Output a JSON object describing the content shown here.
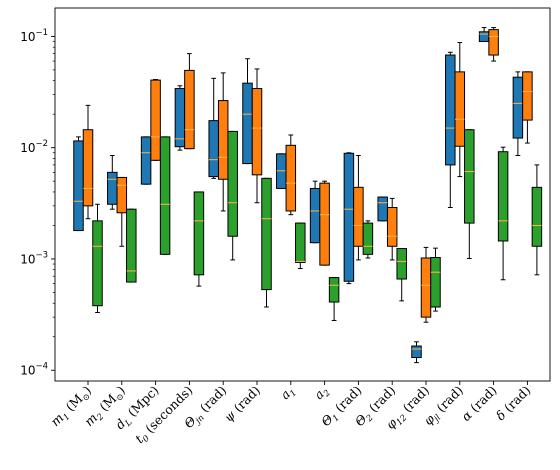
{
  "chart_data": {
    "type": "boxplot",
    "yscale": "log",
    "ylim": [
      8e-05,
      0.18
    ],
    "y_ticks": [
      {
        "value": 0.1,
        "base": "10",
        "exp": "−1"
      },
      {
        "value": 0.01,
        "base": "10",
        "exp": "−2"
      },
      {
        "value": 0.001,
        "base": "10",
        "exp": "−3"
      },
      {
        "value": 0.0001,
        "base": "10",
        "exp": "−4"
      }
    ],
    "categories": [
      {
        "main": "m",
        "sub": "1",
        "rest": " (M",
        "rest_sub": "⊙",
        "end": ")"
      },
      {
        "main": "m",
        "sub": "2",
        "rest": " (M",
        "rest_sub": "⊙",
        "end": ")"
      },
      {
        "main": "d",
        "sub": "L",
        "rest": " (Mpc)",
        "rest_sub": "",
        "end": ""
      },
      {
        "main": "t",
        "sub": "0",
        "rest": " (seconds)",
        "rest_sub": "",
        "end": ""
      },
      {
        "main": "Θ",
        "sub": "jn",
        "rest": " (rad)",
        "rest_sub": "",
        "end": ""
      },
      {
        "main": "ψ",
        "sub": "",
        "rest": " (rad)",
        "rest_sub": "",
        "end": ""
      },
      {
        "main": "a",
        "sub": "1",
        "rest": "",
        "rest_sub": "",
        "end": ""
      },
      {
        "main": "a",
        "sub": "2",
        "rest": "",
        "rest_sub": "",
        "end": ""
      },
      {
        "main": "Θ",
        "sub": "1",
        "rest": " (rad)",
        "rest_sub": "",
        "end": ""
      },
      {
        "main": "Θ",
        "sub": "2",
        "rest": " (rad)",
        "rest_sub": "",
        "end": ""
      },
      {
        "main": "φ",
        "sub": "12",
        "rest": " (rad)",
        "rest_sub": "",
        "end": ""
      },
      {
        "main": "φ",
        "sub": "jl",
        "rest": " (rad)",
        "rest_sub": "",
        "end": ""
      },
      {
        "main": "α",
        "sub": "",
        "rest": " (rad)",
        "rest_sub": "",
        "end": ""
      },
      {
        "main": "δ",
        "sub": "",
        "rest": " (rad)",
        "rest_sub": "",
        "end": ""
      }
    ],
    "series": [
      {
        "color": "#1f77b4",
        "boxes": [
          {
            "wl": 0.0018,
            "q1": 0.0018,
            "med": 0.0033,
            "q3": 0.0115,
            "wh": 0.0125
          },
          {
            "wl": 0.0028,
            "q1": 0.0031,
            "med": 0.0052,
            "q3": 0.006,
            "wh": 0.0085
          },
          {
            "wl": 0.0047,
            "q1": 0.0047,
            "med": 0.009,
            "q3": 0.0125,
            "wh": 0.0125
          },
          {
            "wl": 0.0095,
            "q1": 0.0102,
            "med": 0.012,
            "q3": 0.034,
            "wh": 0.036
          },
          {
            "wl": 0.0053,
            "q1": 0.0055,
            "med": 0.0078,
            "q3": 0.0175,
            "wh": 0.042
          },
          {
            "wl": 0.0072,
            "q1": 0.0072,
            "med": 0.02,
            "q3": 0.038,
            "wh": 0.063
          },
          {
            "wl": 0.0043,
            "q1": 0.0043,
            "med": 0.0062,
            "q3": 0.0088,
            "wh": 0.0088
          },
          {
            "wl": 0.0014,
            "q1": 0.0014,
            "med": 0.0027,
            "q3": 0.0043,
            "wh": 0.005
          },
          {
            "wl": 0.0006,
            "q1": 0.00063,
            "med": 0.0028,
            "q3": 0.0089,
            "wh": 0.009
          },
          {
            "wl": 0.0022,
            "q1": 0.0022,
            "med": 0.0032,
            "q3": 0.0036,
            "wh": 0.0036
          },
          {
            "wl": 0.000117,
            "q1": 0.00013,
            "med": 0.000155,
            "q3": 0.000165,
            "wh": 0.00018
          },
          {
            "wl": 0.0029,
            "q1": 0.007,
            "med": 0.015,
            "q3": 0.068,
            "wh": 0.072
          },
          {
            "wl": 0.09,
            "q1": 0.09,
            "med": 0.105,
            "q3": 0.11,
            "wh": 0.12
          },
          {
            "wl": 0.0085,
            "q1": 0.0122,
            "med": 0.025,
            "q3": 0.043,
            "wh": 0.048
          }
        ]
      },
      {
        "color": "#ff7f0e",
        "boxes": [
          {
            "wl": 0.0023,
            "q1": 0.003,
            "med": 0.0043,
            "q3": 0.0145,
            "wh": 0.024
          },
          {
            "wl": 0.0013,
            "q1": 0.0026,
            "med": 0.0046,
            "q3": 0.0054,
            "wh": 0.0054
          },
          {
            "wl": 0.0077,
            "q1": 0.0077,
            "med": 0.0125,
            "q3": 0.0405,
            "wh": 0.041
          },
          {
            "wl": 0.0098,
            "q1": 0.0098,
            "med": 0.0145,
            "q3": 0.0495,
            "wh": 0.07
          },
          {
            "wl": 0.0027,
            "q1": 0.0052,
            "med": 0.0082,
            "q3": 0.0265,
            "wh": 0.047
          },
          {
            "wl": 0.0032,
            "q1": 0.0057,
            "med": 0.015,
            "q3": 0.034,
            "wh": 0.051
          },
          {
            "wl": 0.0025,
            "q1": 0.0027,
            "med": 0.0048,
            "q3": 0.0105,
            "wh": 0.013
          },
          {
            "wl": 0.00088,
            "q1": 0.00088,
            "med": 0.0025,
            "q3": 0.0048,
            "wh": 0.005
          },
          {
            "wl": 0.00098,
            "q1": 0.0013,
            "med": 0.002,
            "q3": 0.0044,
            "wh": 0.0085
          },
          {
            "wl": 0.00098,
            "q1": 0.0013,
            "med": 0.0016,
            "q3": 0.0029,
            "wh": 0.0035
          },
          {
            "wl": 0.00027,
            "q1": 0.0003,
            "med": 0.00058,
            "q3": 0.00102,
            "wh": 0.00127
          },
          {
            "wl": 0.0055,
            "q1": 0.0103,
            "med": 0.018,
            "q3": 0.048,
            "wh": 0.088
          },
          {
            "wl": 0.06,
            "q1": 0.068,
            "med": 0.1,
            "q3": 0.115,
            "wh": 0.12
          },
          {
            "wl": 0.011,
            "q1": 0.0177,
            "med": 0.032,
            "q3": 0.048,
            "wh": 0.048
          }
        ]
      },
      {
        "color": "#2ca02c",
        "boxes": [
          {
            "wl": 0.00033,
            "q1": 0.00038,
            "med": 0.0013,
            "q3": 0.0022,
            "wh": 0.0031
          },
          {
            "wl": 0.00062,
            "q1": 0.00062,
            "med": 0.00078,
            "q3": 0.0028,
            "wh": 0.0028
          },
          {
            "wl": 0.0011,
            "q1": 0.0011,
            "med": 0.0031,
            "q3": 0.0125,
            "wh": 0.0125
          },
          {
            "wl": 0.00057,
            "q1": 0.00072,
            "med": 0.0022,
            "q3": 0.004,
            "wh": 0.004
          },
          {
            "wl": 0.00098,
            "q1": 0.0016,
            "med": 0.0032,
            "q3": 0.014,
            "wh": 0.014
          },
          {
            "wl": 0.00037,
            "q1": 0.00053,
            "med": 0.0023,
            "q3": 0.0053,
            "wh": 0.0053
          },
          {
            "wl": 0.00082,
            "q1": 0.00093,
            "med": 0.00095,
            "q3": 0.0021,
            "wh": 0.0021
          },
          {
            "wl": 0.00028,
            "q1": 0.00041,
            "med": 0.00058,
            "q3": 0.00068,
            "wh": 0.00068
          },
          {
            "wl": 0.00102,
            "q1": 0.0011,
            "med": 0.0013,
            "q3": 0.0021,
            "wh": 0.0022
          },
          {
            "wl": 0.00042,
            "q1": 0.00066,
            "med": 0.00095,
            "q3": 0.00124,
            "wh": 0.00124
          },
          {
            "wl": 0.00034,
            "q1": 0.00037,
            "med": 0.00076,
            "q3": 0.00103,
            "wh": 0.00125
          },
          {
            "wl": 0.00101,
            "q1": 0.0021,
            "med": 0.0061,
            "q3": 0.0145,
            "wh": 0.0145
          },
          {
            "wl": 0.00065,
            "q1": 0.00145,
            "med": 0.0022,
            "q3": 0.0092,
            "wh": 0.0101
          },
          {
            "wl": 0.00072,
            "q1": 0.0013,
            "med": 0.002,
            "q3": 0.0044,
            "wh": 0.007
          }
        ]
      }
    ],
    "median_color": "#ffb347",
    "grid": false
  }
}
